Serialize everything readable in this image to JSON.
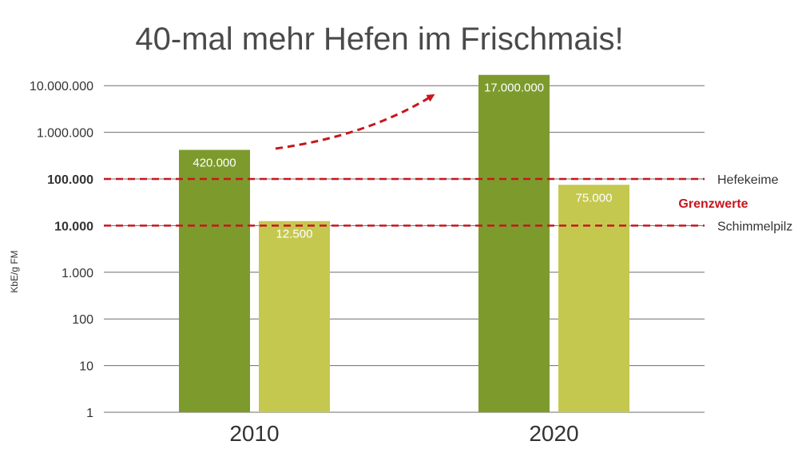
{
  "chart_data": {
    "type": "bar",
    "title": "40-mal mehr Hefen im Frischmais!",
    "ylabel": "KbE/g FM",
    "xlabel": "",
    "yscale": "log",
    "ylim": [
      1,
      17000000
    ],
    "yticks": [
      {
        "value": 1,
        "label": "1",
        "bold": false
      },
      {
        "value": 10,
        "label": "10",
        "bold": false
      },
      {
        "value": 100,
        "label": "100",
        "bold": false
      },
      {
        "value": 1000,
        "label": "1.000",
        "bold": false
      },
      {
        "value": 10000,
        "label": "10.000",
        "bold": true
      },
      {
        "value": 100000,
        "label": "100.000",
        "bold": true
      },
      {
        "value": 1000000,
        "label": "1.000.000",
        "bold": false
      },
      {
        "value": 10000000,
        "label": "10.000.000",
        "bold": false
      }
    ],
    "grid": true,
    "categories": [
      "2010",
      "2020"
    ],
    "series": [
      {
        "values": [
          420000,
          17000000
        ],
        "labels": [
          "420.000",
          "17.000.000"
        ],
        "color": "#7d9a2d"
      },
      {
        "values": [
          12500,
          75000
        ],
        "labels": [
          "12.500",
          "75.000"
        ],
        "color": "#c5c84f"
      }
    ],
    "reference_lines": [
      {
        "value": 100000,
        "label": "Hefekeime",
        "color": "#c8161d"
      },
      {
        "value": 10000,
        "label": "Schimmelpilz",
        "color": "#c8161d"
      }
    ],
    "reference_group_label": "Grenzwerte",
    "annotations": [
      {
        "type": "arrow",
        "style": "dashed",
        "color": "#c8161d",
        "direction": "up-right"
      }
    ]
  }
}
